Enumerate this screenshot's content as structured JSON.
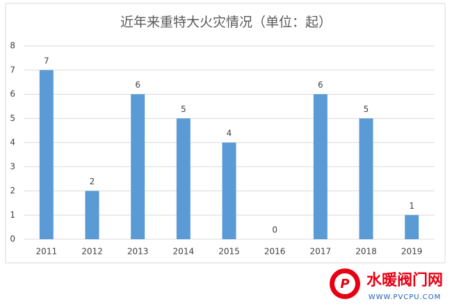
{
  "chart_data": {
    "type": "bar",
    "title": "近年来重特大火灾情况（单位：起）",
    "categories": [
      "2011",
      "2012",
      "2013",
      "2014",
      "2015",
      "2016",
      "2017",
      "2018",
      "2019"
    ],
    "values": [
      7,
      2,
      6,
      5,
      4,
      0,
      6,
      5,
      1
    ],
    "color": "#5b9bd5",
    "ylim": [
      0,
      8
    ],
    "yticks": [
      0,
      1,
      2,
      3,
      4,
      5,
      6,
      7,
      8
    ],
    "grid": true,
    "data_labels": true
  },
  "watermark": {
    "name": "水暖阀门网",
    "url": "WWW.PVCPU.COM"
  }
}
